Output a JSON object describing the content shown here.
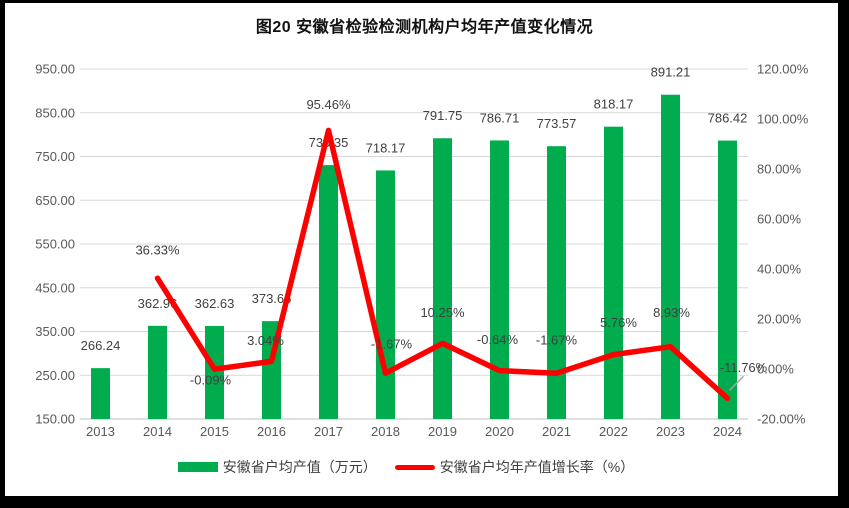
{
  "chart_data": {
    "type": "bar-line-combo",
    "title": "图20 安徽省检验检测机构户均年产值变化情况",
    "categories": [
      "2013",
      "2014",
      "2015",
      "2016",
      "2017",
      "2018",
      "2019",
      "2020",
      "2021",
      "2022",
      "2023",
      "2024"
    ],
    "series": [
      {
        "name": "安徽省户均产值（万元）",
        "type": "bar",
        "axis": "left",
        "color": "#00AC4E",
        "values": [
          266.24,
          362.96,
          362.63,
          373.66,
          730.35,
          718.17,
          791.75,
          786.71,
          773.57,
          818.17,
          891.21,
          786.42
        ],
        "labels": [
          "266.24",
          "362.96",
          "362.63",
          "373.66",
          "730.35",
          "718.17",
          "791.75",
          "786.71",
          "773.57",
          "818.17",
          "891.21",
          "786.42"
        ]
      },
      {
        "name": "安徽省户均年产值增长率（%）",
        "type": "line",
        "axis": "right",
        "color": "#FE0000",
        "values": [
          null,
          36.33,
          -0.09,
          3.04,
          95.46,
          -1.67,
          10.25,
          -0.64,
          -1.67,
          5.76,
          8.93,
          -11.76
        ],
        "labels": [
          "",
          "36.33%",
          "-0.09%",
          "3.04%",
          "95.46%",
          "-1.67%",
          "10.25%",
          "-0.64%",
          "-1.67%",
          "5.76%",
          "8.93%",
          "-11.76%"
        ]
      }
    ],
    "left_axis": {
      "min": 150,
      "max": 950,
      "step": 100,
      "tick_labels": [
        "150.00",
        "250.00",
        "350.00",
        "450.00",
        "550.00",
        "650.00",
        "750.00",
        "850.00",
        "950.00"
      ]
    },
    "right_axis": {
      "min": -20,
      "max": 120,
      "step": 20,
      "tick_labels": [
        "-20.00%",
        "0.00%",
        "20.00%",
        "40.00%",
        "60.00%",
        "80.00%",
        "100.00%",
        "120.00%"
      ]
    },
    "grid": true,
    "legend_position": "bottom",
    "colors": {
      "grid_line": "#D9D9D9",
      "axis_line": "#BFBFBF",
      "tick_text": "#595959",
      "data_label_text": "#404040",
      "leader_line": "#A6A6A6",
      "frame_border": "#000000",
      "background": "#FFFFFF"
    }
  }
}
